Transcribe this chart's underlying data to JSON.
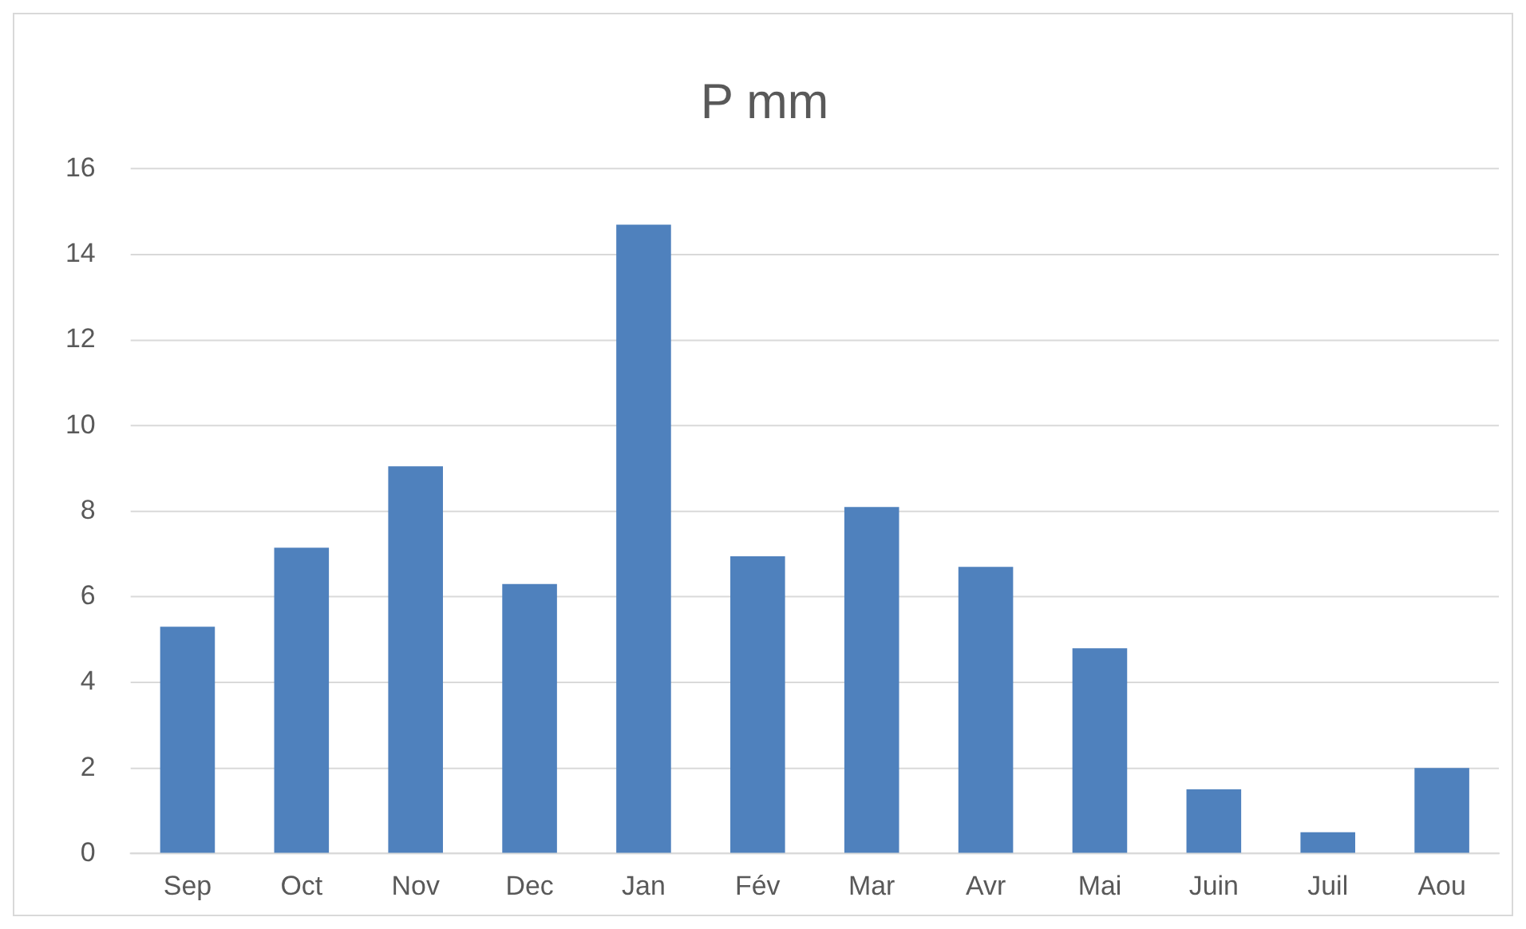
{
  "chart_data": {
    "type": "bar",
    "title": "P mm",
    "categories": [
      "Sep",
      "Oct",
      "Nov",
      "Dec",
      "Jan",
      "Fév",
      "Mar",
      "Avr",
      "Mai",
      "Juin",
      "Juil",
      "Aou"
    ],
    "values": [
      5.3,
      7.15,
      9.05,
      6.3,
      14.7,
      6.95,
      8.1,
      6.7,
      4.8,
      1.5,
      0.5,
      2.0
    ],
    "color": "#4f81bd",
    "ylim": [
      0,
      16
    ],
    "yticks": [
      0,
      2,
      4,
      6,
      8,
      10,
      12,
      14,
      16
    ],
    "grid": "y"
  }
}
